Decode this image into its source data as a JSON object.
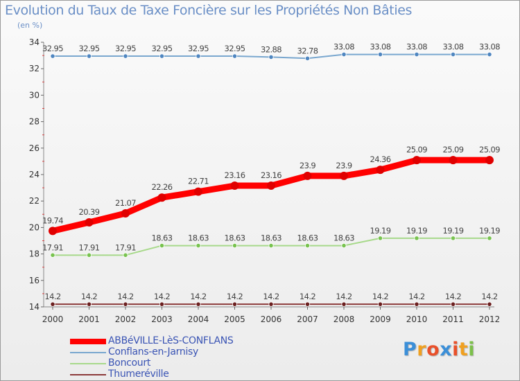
{
  "chart_data": {
    "type": "line",
    "title": "Evolution du Taux de Taxe Foncière sur les Propriétés Non Bâties",
    "ylabel": "(en %)",
    "xlabel": "",
    "x": [
      "2000",
      "2001",
      "2002",
      "2003",
      "2004",
      "2005",
      "2006",
      "2007",
      "2008",
      "2009",
      "2010",
      "2011",
      "2012"
    ],
    "ylim": [
      14,
      34
    ],
    "yticks": [
      14,
      16,
      18,
      20,
      22,
      24,
      26,
      28,
      30,
      32,
      34
    ],
    "grid": false,
    "legend_position": "bottom-left",
    "series": [
      {
        "name": "ABBéVILLE-LèS-CONFLANS",
        "color": "#ff0000",
        "marker_color": "#e00000",
        "highlight": true,
        "values": [
          19.74,
          20.39,
          21.07,
          22.26,
          22.71,
          23.16,
          23.16,
          23.9,
          23.9,
          24.36,
          25.09,
          25.09,
          25.09
        ],
        "labels": [
          "19.74",
          "20.39",
          "21.07",
          "22.26",
          "22.71",
          "23.16",
          "23.16",
          "23.9",
          "23.9",
          "24.36",
          "25.09",
          "25.09",
          "25.09"
        ]
      },
      {
        "name": "Conflans-en-Jarnisy",
        "color": "#79a7cf",
        "marker_color": "#4f86c0",
        "highlight": false,
        "values": [
          32.95,
          32.95,
          32.95,
          32.95,
          32.95,
          32.95,
          32.88,
          32.78,
          33.08,
          33.08,
          33.08,
          33.08,
          33.08
        ],
        "labels": [
          "32.95",
          "32.95",
          "32.95",
          "32.95",
          "32.95",
          "32.95",
          "32.88",
          "32.78",
          "33.08",
          "33.08",
          "33.08",
          "33.08",
          "33.08"
        ]
      },
      {
        "name": "Boncourt",
        "color": "#a7d98a",
        "marker_color": "#78c24f",
        "highlight": false,
        "values": [
          17.91,
          17.91,
          17.91,
          18.63,
          18.63,
          18.63,
          18.63,
          18.63,
          18.63,
          19.19,
          19.19,
          19.19,
          19.19
        ],
        "labels": [
          "17.91",
          "17.91",
          "17.91",
          "18.63",
          "18.63",
          "18.63",
          "18.63",
          "18.63",
          "18.63",
          "19.19",
          "19.19",
          "19.19",
          "19.19"
        ]
      },
      {
        "name": "Thumeréville",
        "color": "#8c3a3a",
        "marker_color": "#6b1f1f",
        "highlight": false,
        "values": [
          14.2,
          14.2,
          14.2,
          14.2,
          14.2,
          14.2,
          14.2,
          14.2,
          14.2,
          14.2,
          14.2,
          14.2,
          14.2
        ],
        "labels": [
          "14.2",
          "14.2",
          "14.2",
          "14.2",
          "14.2",
          "14.2",
          "14.2",
          "14.2",
          "14.2",
          "14.2",
          "14.2",
          "14.2",
          "14.2"
        ]
      }
    ]
  },
  "logo": {
    "letters": [
      "P",
      "r",
      "o",
      "x",
      "i",
      "t",
      "i"
    ],
    "colors": [
      "#3b8fd8",
      "#f0a020",
      "#e9502a",
      "#3b8fd8",
      "#e9502a",
      "#f0a020",
      "#7cc04a"
    ]
  }
}
